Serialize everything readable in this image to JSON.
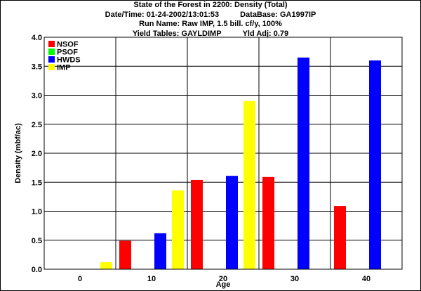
{
  "header": {
    "line1": "State of the Forest in 2200: Density (Total)",
    "datetime": "Date/Time: 01-24-2002/13:01:53",
    "database": "DataBase: GA1997IP",
    "line3": "Run Name: Raw IMP, 1.5 bill. cf/y, 100%",
    "yield_tables": "Yield Tables: GAYLDIMP",
    "yld_adj": "Yld Adj: 0.79"
  },
  "chart_data": {
    "type": "bar",
    "categories": [
      "0",
      "10",
      "20",
      "30",
      "40"
    ],
    "series": [
      {
        "name": "NSOF",
        "color": "#ff0000",
        "values": [
          0,
          0.49,
          1.54,
          1.59,
          1.09
        ]
      },
      {
        "name": "PSOF",
        "color": "#00ff00",
        "values": [
          0,
          0,
          0,
          0,
          0
        ]
      },
      {
        "name": "HWDS",
        "color": "#0000ff",
        "values": [
          0,
          0.62,
          1.61,
          3.65,
          3.6
        ]
      },
      {
        "name": "IMP",
        "color": "#ffff00",
        "values": [
          0.12,
          1.36,
          2.9,
          0,
          0
        ]
      }
    ],
    "xlabel": "Age",
    "ylabel": "Density (mbf/ac)",
    "ylim": [
      0,
      4
    ],
    "yticks": [
      "0.0",
      "0.5",
      "1.0",
      "1.5",
      "2.0",
      "2.5",
      "3.0",
      "3.5",
      "4.0"
    ],
    "grid": true,
    "legend_position": "top-left"
  }
}
